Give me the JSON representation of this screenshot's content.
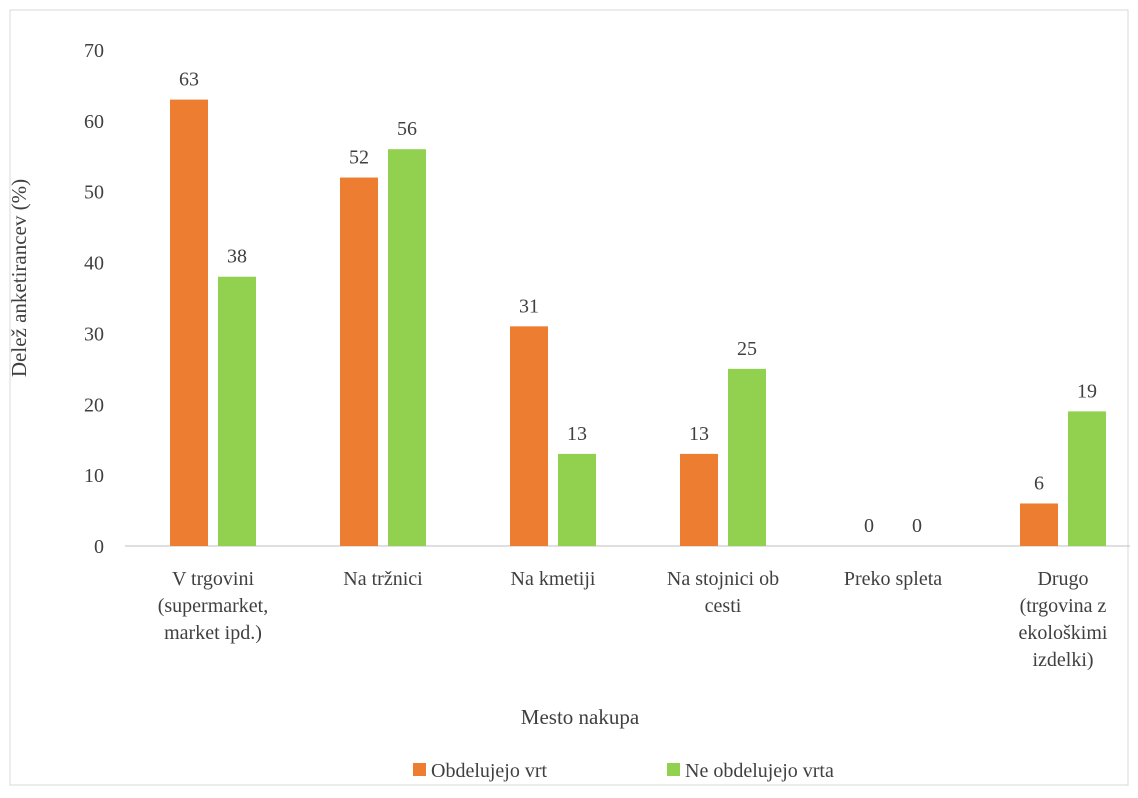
{
  "chart_data": {
    "type": "bar",
    "title": "",
    "xlabel": "Mesto nakupa",
    "ylabel": "Delež anketirancev (%)",
    "ylim": [
      0,
      70
    ],
    "yticks": [
      0,
      10,
      20,
      30,
      40,
      50,
      60,
      70
    ],
    "categories": [
      [
        "V trgovini",
        "(supermarket,",
        "market ipd.)"
      ],
      [
        "Na tržnici"
      ],
      [
        "Na kmetiji"
      ],
      [
        "Na stojnici ob",
        "cesti"
      ],
      [
        "Preko spleta"
      ],
      [
        "Drugo",
        "(trgovina z",
        "ekološkimi",
        "izdelki)"
      ]
    ],
    "series": [
      {
        "name": "Obdelujejo vrt",
        "color": "#ED7D31",
        "values": [
          63,
          52,
          31,
          13,
          0,
          6
        ]
      },
      {
        "name": "Ne obdelujejo vrta",
        "color": "#92D050",
        "values": [
          38,
          56,
          13,
          25,
          0,
          19
        ]
      }
    ],
    "grid": false,
    "data_labels": true,
    "legend_position": "bottom"
  }
}
